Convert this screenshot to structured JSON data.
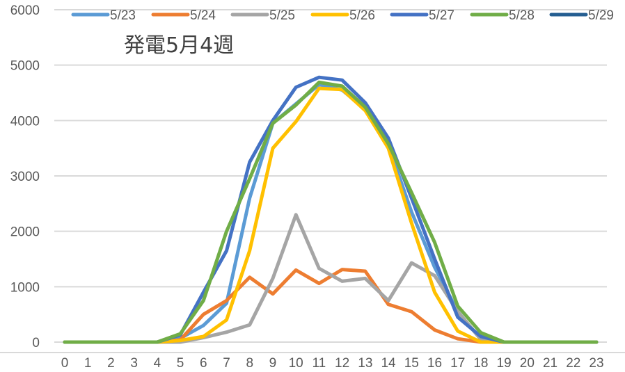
{
  "chart_data": {
    "type": "line",
    "title": "発電5月4週",
    "xlabel": "",
    "ylabel": "",
    "ylim": [
      0,
      6000
    ],
    "yticks": [
      0,
      1000,
      2000,
      3000,
      4000,
      5000,
      6000
    ],
    "grid": true,
    "legend_position": "top",
    "categories": [
      "0",
      "1",
      "2",
      "3",
      "4",
      "5",
      "6",
      "7",
      "8",
      "9",
      "10",
      "11",
      "12",
      "13",
      "14",
      "15",
      "16",
      "17",
      "18",
      "19",
      "20",
      "21",
      "22",
      "23"
    ],
    "series": [
      {
        "name": "5/23",
        "color": "#5B9BD5",
        "values": [
          0,
          0,
          0,
          0,
          0,
          70,
          300,
          700,
          2600,
          3950,
          4300,
          4650,
          4550,
          4200,
          3550,
          2350,
          1350,
          550,
          50,
          0,
          0,
          0,
          0,
          0
        ]
      },
      {
        "name": "5/24",
        "color": "#ED7D31",
        "values": [
          0,
          0,
          0,
          0,
          0,
          40,
          500,
          750,
          1170,
          870,
          1300,
          1060,
          1310,
          1280,
          680,
          550,
          220,
          60,
          0,
          0,
          0,
          0,
          0,
          0
        ]
      },
      {
        "name": "5/25",
        "color": "#A5A5A5",
        "values": [
          0,
          0,
          0,
          0,
          0,
          0,
          80,
          180,
          310,
          1150,
          2300,
          1330,
          1100,
          1150,
          750,
          1430,
          1200,
          550,
          50,
          0,
          0,
          0,
          0,
          0
        ]
      },
      {
        "name": "5/26",
        "color": "#FFC000",
        "values": [
          0,
          0,
          0,
          0,
          0,
          30,
          100,
          400,
          1650,
          3500,
          3980,
          4580,
          4560,
          4180,
          3500,
          2150,
          900,
          200,
          0,
          0,
          0,
          0,
          0,
          0
        ]
      },
      {
        "name": "5/27",
        "color": "#4472C4",
        "values": [
          0,
          0,
          0,
          0,
          0,
          130,
          900,
          1650,
          3250,
          4000,
          4600,
          4780,
          4730,
          4320,
          3680,
          2600,
          1500,
          450,
          100,
          0,
          0,
          0,
          0,
          0
        ]
      },
      {
        "name": "5/28",
        "color": "#70AD47",
        "values": [
          0,
          0,
          0,
          0,
          0,
          150,
          750,
          2000,
          2950,
          3950,
          4280,
          4690,
          4620,
          4240,
          3580,
          2700,
          1800,
          650,
          170,
          0,
          0,
          0,
          0,
          0
        ]
      },
      {
        "name": "5/29",
        "color": "#255E91",
        "values": []
      }
    ]
  }
}
